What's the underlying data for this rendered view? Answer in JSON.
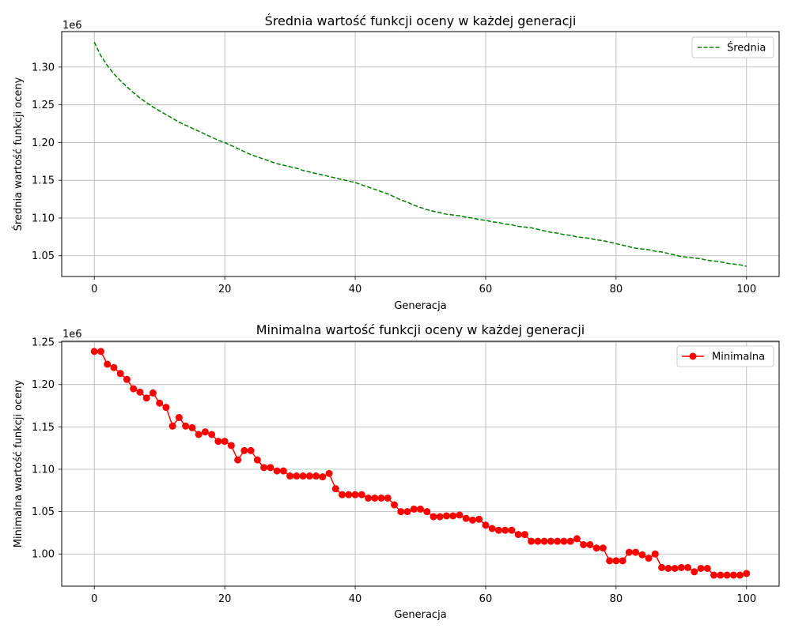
{
  "chart_data": [
    {
      "type": "line",
      "title": "Średnia wartość funkcji oceny w każdej generacji",
      "xlabel": "Generacja",
      "ylabel": "Średnia wartość funkcji oceny",
      "offset_text": "1e6",
      "xlim": [
        -5,
        105
      ],
      "ylim": [
        1.0225,
        1.347
      ],
      "xticks": [
        0,
        20,
        40,
        60,
        80,
        100
      ],
      "xtick_labels": [
        "0",
        "20",
        "40",
        "60",
        "80",
        "100"
      ],
      "yticks": [
        1.05,
        1.1,
        1.15,
        1.2,
        1.25,
        1.3
      ],
      "ytick_labels": [
        "1.05",
        "1.10",
        "1.15",
        "1.20",
        "1.25",
        "1.30"
      ],
      "grid": true,
      "legend_position": "upper-right",
      "color": "#008000",
      "line_style": "dashed",
      "marker": "none",
      "series": [
        {
          "name": "Średnia",
          "x": [
            0,
            1,
            2,
            3,
            4,
            5,
            6,
            7,
            8,
            9,
            10,
            11,
            12,
            13,
            14,
            15,
            16,
            17,
            18,
            19,
            20,
            21,
            22,
            23,
            24,
            25,
            26,
            27,
            28,
            29,
            30,
            31,
            32,
            33,
            34,
            35,
            36,
            37,
            38,
            39,
            40,
            41,
            42,
            43,
            44,
            45,
            46,
            47,
            48,
            49,
            50,
            51,
            52,
            53,
            54,
            55,
            56,
            57,
            58,
            59,
            60,
            61,
            62,
            63,
            64,
            65,
            66,
            67,
            68,
            69,
            70,
            71,
            72,
            73,
            74,
            75,
            76,
            77,
            78,
            79,
            80,
            81,
            82,
            83,
            84,
            85,
            86,
            87,
            88,
            89,
            90,
            91,
            92,
            93,
            94,
            95,
            96,
            97,
            98,
            99,
            100
          ],
          "y": [
            1.333,
            1.315,
            1.302,
            1.291,
            1.282,
            1.274,
            1.266,
            1.259,
            1.253,
            1.247,
            1.242,
            1.237,
            1.232,
            1.227,
            1.223,
            1.219,
            1.215,
            1.211,
            1.207,
            1.203,
            1.2,
            1.196,
            1.192,
            1.188,
            1.184,
            1.181,
            1.178,
            1.175,
            1.172,
            1.17,
            1.168,
            1.166,
            1.163,
            1.161,
            1.159,
            1.157,
            1.155,
            1.153,
            1.151,
            1.149,
            1.147,
            1.144,
            1.141,
            1.138,
            1.135,
            1.132,
            1.128,
            1.124,
            1.121,
            1.117,
            1.114,
            1.111,
            1.109,
            1.107,
            1.105,
            1.104,
            1.103,
            1.101,
            1.1,
            1.098,
            1.097,
            1.095,
            1.094,
            1.092,
            1.091,
            1.089,
            1.088,
            1.087,
            1.085,
            1.083,
            1.081,
            1.08,
            1.078,
            1.077,
            1.075,
            1.074,
            1.073,
            1.071,
            1.07,
            1.068,
            1.066,
            1.064,
            1.062,
            1.06,
            1.059,
            1.058,
            1.056,
            1.055,
            1.053,
            1.051,
            1.049,
            1.048,
            1.047,
            1.046,
            1.044,
            1.043,
            1.042,
            1.04,
            1.039,
            1.038,
            1.036
          ]
        }
      ]
    },
    {
      "type": "line",
      "title": "Minimalna wartość funkcji oceny w każdej generacji",
      "xlabel": "Generacja",
      "ylabel": "Minimalna wartość funkcji oceny",
      "offset_text": "1e6",
      "xlim": [
        -5,
        105
      ],
      "ylim": [
        0.962,
        1.251
      ],
      "xticks": [
        0,
        20,
        40,
        60,
        80,
        100
      ],
      "xtick_labels": [
        "0",
        "20",
        "40",
        "60",
        "80",
        "100"
      ],
      "yticks": [
        1.0,
        1.05,
        1.1,
        1.15,
        1.2,
        1.25
      ],
      "ytick_labels": [
        "1.00",
        "1.05",
        "1.10",
        "1.15",
        "1.20",
        "1.25"
      ],
      "grid": true,
      "legend_position": "upper-right",
      "color": "#ff0000",
      "line_style": "solid",
      "marker": "circle",
      "series": [
        {
          "name": "Minimalna",
          "x": [
            0,
            1,
            2,
            3,
            4,
            5,
            6,
            7,
            8,
            9,
            10,
            11,
            12,
            13,
            14,
            15,
            16,
            17,
            18,
            19,
            20,
            21,
            22,
            23,
            24,
            25,
            26,
            27,
            28,
            29,
            30,
            31,
            32,
            33,
            34,
            35,
            36,
            37,
            38,
            39,
            40,
            41,
            42,
            43,
            44,
            45,
            46,
            47,
            48,
            49,
            50,
            51,
            52,
            53,
            54,
            55,
            56,
            57,
            58,
            59,
            60,
            61,
            62,
            63,
            64,
            65,
            66,
            67,
            68,
            69,
            70,
            71,
            72,
            73,
            74,
            75,
            76,
            77,
            78,
            79,
            80,
            81,
            82,
            83,
            84,
            85,
            86,
            87,
            88,
            89,
            90,
            91,
            92,
            93,
            94,
            95,
            96,
            97,
            98,
            99,
            100
          ],
          "y": [
            1.239,
            1.239,
            1.224,
            1.22,
            1.213,
            1.206,
            1.195,
            1.191,
            1.184,
            1.19,
            1.178,
            1.173,
            1.151,
            1.161,
            1.151,
            1.149,
            1.141,
            1.144,
            1.141,
            1.133,
            1.133,
            1.128,
            1.111,
            1.122,
            1.122,
            1.111,
            1.102,
            1.102,
            1.098,
            1.098,
            1.092,
            1.092,
            1.092,
            1.092,
            1.092,
            1.091,
            1.095,
            1.077,
            1.07,
            1.07,
            1.07,
            1.07,
            1.066,
            1.066,
            1.066,
            1.066,
            1.058,
            1.05,
            1.05,
            1.053,
            1.053,
            1.05,
            1.044,
            1.044,
            1.045,
            1.045,
            1.046,
            1.042,
            1.04,
            1.041,
            1.034,
            1.03,
            1.028,
            1.028,
            1.028,
            1.023,
            1.023,
            1.015,
            1.015,
            1.015,
            1.015,
            1.015,
            1.015,
            1.015,
            1.018,
            1.011,
            1.011,
            1.007,
            1.007,
            0.992,
            0.992,
            0.992,
            1.002,
            1.002,
            0.999,
            0.995,
            1.0,
            0.984,
            0.983,
            0.983,
            0.984,
            0.984,
            0.979,
            0.983,
            0.983,
            0.975,
            0.975,
            0.975,
            0.975,
            0.975,
            0.977
          ]
        }
      ]
    }
  ]
}
